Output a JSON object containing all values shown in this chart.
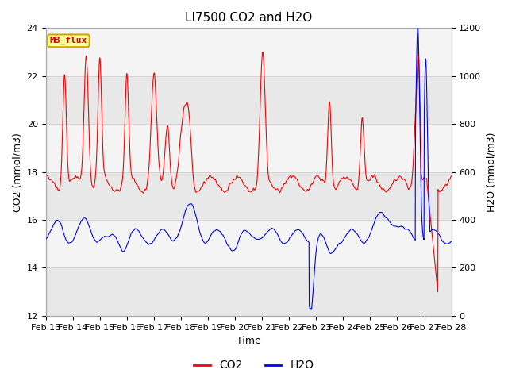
{
  "title": "LI7500 CO2 and H2O",
  "xlabel": "Time",
  "ylabel_left": "CO2 (mmol/m3)",
  "ylabel_right": "H2O (mmol/m3)",
  "ylim_left": [
    12,
    24
  ],
  "ylim_right": [
    0,
    1200
  ],
  "yticks_left": [
    12,
    14,
    16,
    18,
    20,
    22,
    24
  ],
  "yticks_right": [
    0,
    200,
    400,
    600,
    800,
    1000,
    1200
  ],
  "xtick_labels": [
    "Feb 13",
    "Feb 14",
    "Feb 15",
    "Feb 16",
    "Feb 17",
    "Feb 18",
    "Feb 19",
    "Feb 20",
    "Feb 21",
    "Feb 22",
    "Feb 23",
    "Feb 24",
    "Feb 25",
    "Feb 26",
    "Feb 27",
    "Feb 28"
  ],
  "co2_color": "#ff0000",
  "h2o_color": "#0000ff",
  "fig_bg_color": "#ffffff",
  "plot_bg_color": "#ffffff",
  "band_color_dark": "#e8e8e8",
  "band_color_light": "#f4f4f4",
  "legend_box_facecolor": "#ffff99",
  "legend_box_edgecolor": "#ccaa00",
  "watermark_text": "MB_flux",
  "watermark_color": "#cc0000",
  "grid_line_color": "#cccccc",
  "title_fontsize": 11,
  "axis_fontsize": 9,
  "tick_fontsize": 8
}
